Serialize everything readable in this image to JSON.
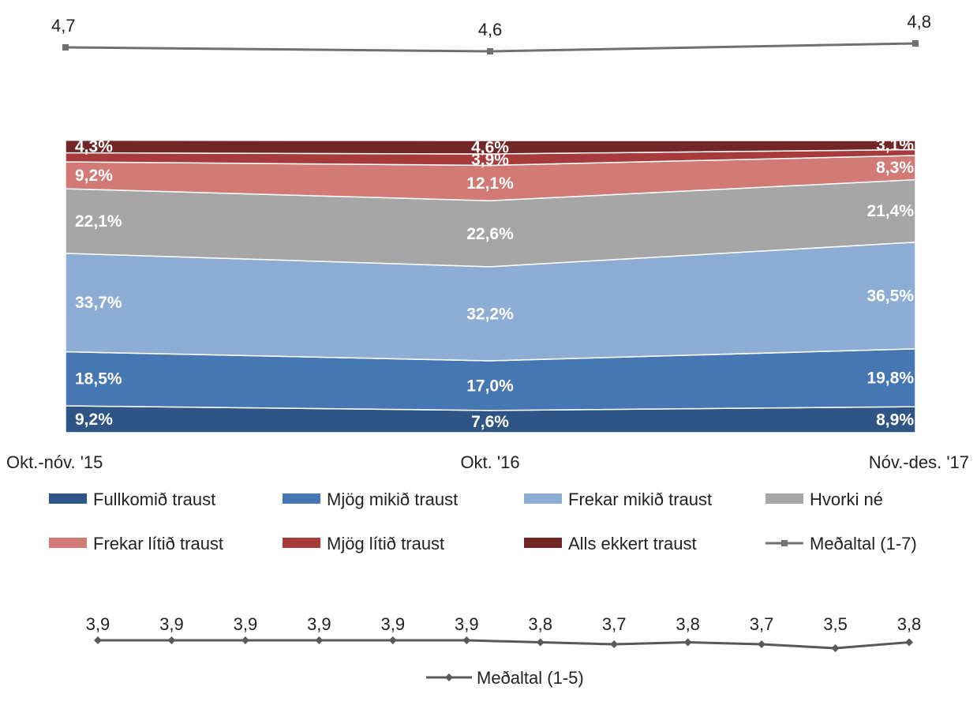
{
  "chart_data": [
    {
      "type": "line",
      "categories": [
        "Okt.-nóv. '15",
        "Okt. '16",
        "Nóv.-des. '17"
      ],
      "series": [
        {
          "name": "Meðaltal (1-7)",
          "values": [
            4.7,
            4.6,
            4.8
          ],
          "labels": [
            "4,7",
            "4,6",
            "4,8"
          ],
          "color": "#707070"
        }
      ]
    },
    {
      "type": "area",
      "stacked": true,
      "percent": true,
      "ylim": [
        0,
        100
      ],
      "categories": [
        "Okt.-nóv. '15",
        "Okt. '16",
        "Nóv.-des. '17"
      ],
      "series": [
        {
          "name": "Fullkomið traust",
          "color": "#2E5585",
          "values": [
            9.2,
            7.6,
            8.9
          ],
          "labels": [
            "9,2%",
            "7,6%",
            "8,9%"
          ]
        },
        {
          "name": "Mjög mikið traust",
          "color": "#4677B2",
          "values": [
            18.5,
            17.0,
            19.8
          ],
          "labels": [
            "18,5%",
            "17,0%",
            "19,8%"
          ]
        },
        {
          "name": "Frekar mikið traust",
          "color": "#8EADD5",
          "values": [
            33.7,
            32.2,
            36.5
          ],
          "labels": [
            "33,7%",
            "32,2%",
            "36,5%"
          ]
        },
        {
          "name": "Hvorki né",
          "color": "#A6A6A6",
          "values": [
            22.1,
            22.6,
            21.4
          ],
          "labels": [
            "22,1%",
            "22,6%",
            "21,4%"
          ]
        },
        {
          "name": "Frekar lítið traust",
          "color": "#D27A76",
          "values": [
            9.2,
            12.1,
            8.3
          ],
          "labels": [
            "9,2%",
            "12,1%",
            "8,3%"
          ]
        },
        {
          "name": "Mjög lítið traust",
          "color": "#A73B3B",
          "values": [
            3.1,
            3.9,
            2.0
          ],
          "labels": [
            "",
            "3,9%",
            ""
          ]
        },
        {
          "name": "Alls ekkert traust",
          "color": "#722626",
          "values": [
            4.3,
            4.6,
            3.1
          ],
          "labels": [
            "4,3%",
            "4,6%",
            "3,1%"
          ]
        }
      ],
      "legend": [
        "Fullkomið traust",
        "Mjög mikið traust",
        "Frekar mikið traust",
        "Hvorki né",
        "Frekar lítið traust",
        "Mjög lítið traust",
        "Alls ekkert traust",
        "Meðaltal (1-7)"
      ],
      "legend_position": "bottom"
    },
    {
      "type": "line",
      "x_count": 12,
      "series": [
        {
          "name": "Meðaltal (1-5)",
          "color": "#595959",
          "values": [
            3.9,
            3.9,
            3.9,
            3.9,
            3.9,
            3.9,
            3.8,
            3.7,
            3.8,
            3.7,
            3.5,
            3.8
          ],
          "labels": [
            "3,9",
            "3,9",
            "3,9",
            "3,9",
            "3,9",
            "3,9",
            "3,8",
            "3,7",
            "3,8",
            "3,7",
            "3,5",
            "3,8"
          ]
        }
      ],
      "legend_position": "bottom"
    }
  ]
}
